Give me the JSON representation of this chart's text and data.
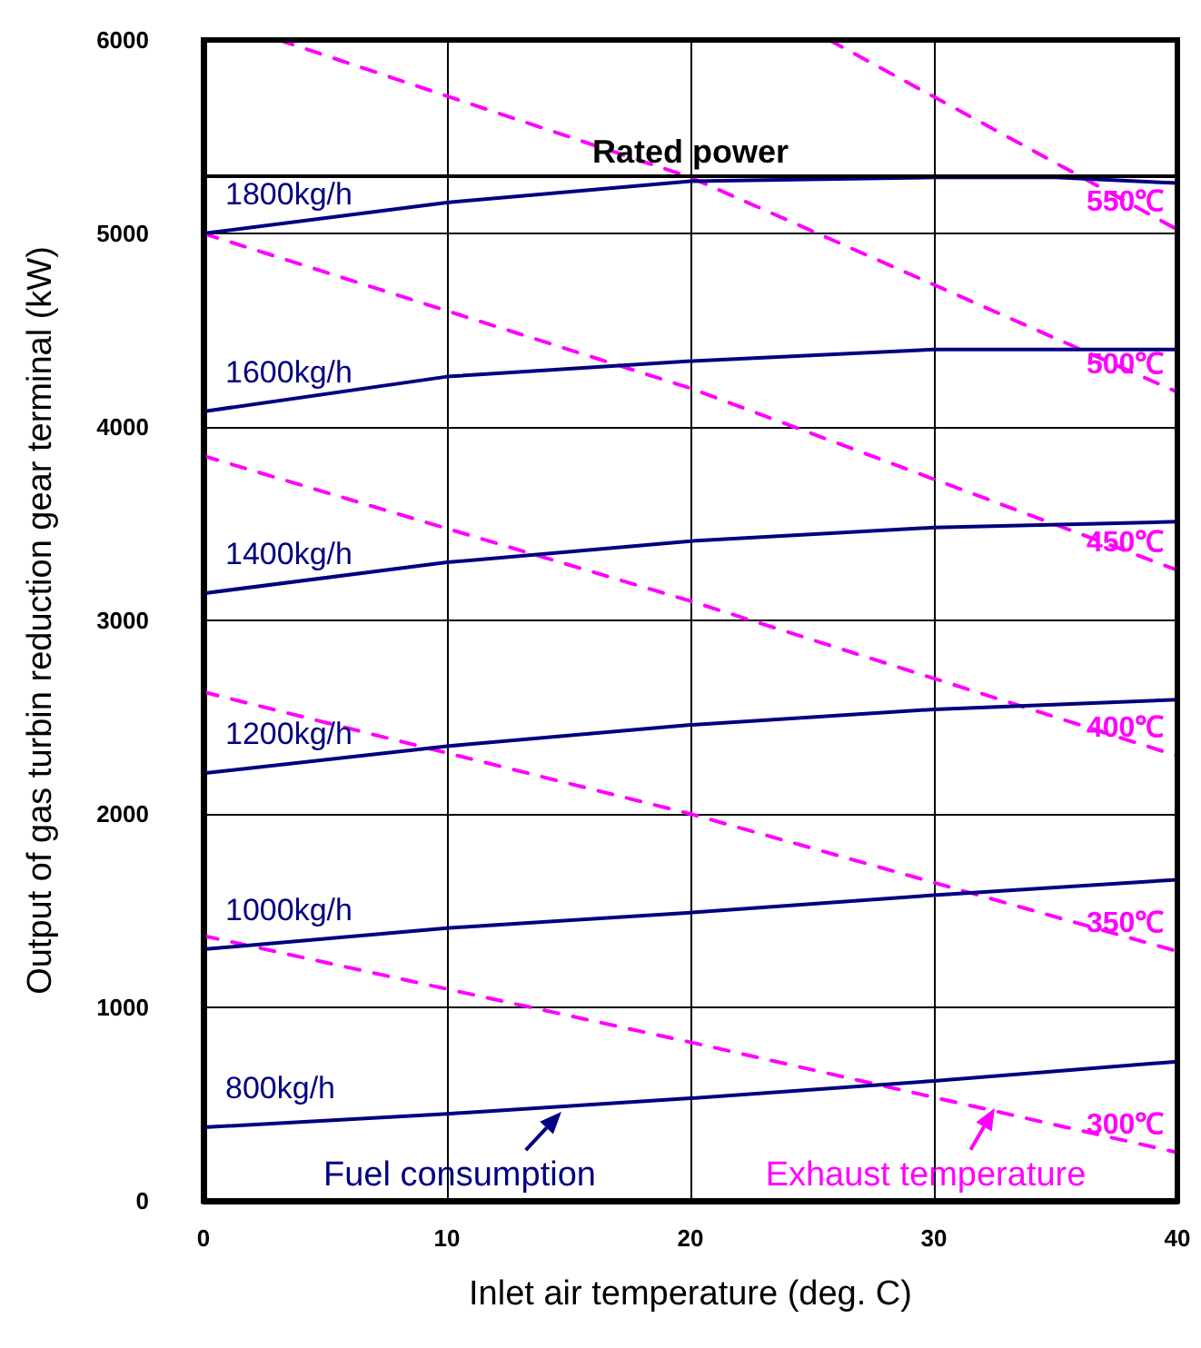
{
  "chart_data": {
    "type": "line",
    "xlabel": "Inlet air temperature (deg. C)",
    "ylabel": "Output of gas turbin reduction gear terminal (kW)",
    "xlim": [
      0,
      40
    ],
    "xticks": [
      0,
      10,
      20,
      30,
      40
    ],
    "ylim": [
      0,
      6000
    ],
    "yticks": [
      0,
      1000,
      2000,
      3000,
      4000,
      5000,
      6000
    ],
    "grid": true,
    "legend": false,
    "series": [
      {
        "name": "1800kg/h",
        "color": "#000080",
        "line_style": "solid",
        "x": [
          0,
          10,
          20,
          30,
          35,
          40
        ],
        "values": [
          5000,
          5160,
          5270,
          5290,
          5290,
          5260
        ]
      },
      {
        "name": "1600kg/h",
        "color": "#000080",
        "line_style": "solid",
        "x": [
          0,
          10,
          20,
          30,
          40
        ],
        "values": [
          4080,
          4260,
          4340,
          4400,
          4400
        ]
      },
      {
        "name": "1400kg/h",
        "color": "#000080",
        "line_style": "solid",
        "x": [
          0,
          10,
          20,
          30,
          40
        ],
        "values": [
          3140,
          3300,
          3410,
          3480,
          3510
        ]
      },
      {
        "name": "1200kg/h",
        "color": "#000080",
        "line_style": "solid",
        "x": [
          0,
          10,
          20,
          30,
          40
        ],
        "values": [
          2210,
          2350,
          2460,
          2540,
          2590
        ]
      },
      {
        "name": "1000kg/h",
        "color": "#000080",
        "line_style": "solid",
        "x": [
          0,
          10,
          20,
          30,
          40
        ],
        "values": [
          1300,
          1410,
          1490,
          1580,
          1660
        ]
      },
      {
        "name": "800kg/h",
        "color": "#000080",
        "line_style": "solid",
        "x": [
          0,
          10,
          20,
          30,
          40
        ],
        "values": [
          380,
          450,
          530,
          620,
          720
        ]
      },
      {
        "name": "550℃",
        "color": "#ff00ff",
        "line_style": "dashed",
        "x": [
          25.7,
          35.8,
          40
        ],
        "values": [
          6000,
          5310,
          5020
        ]
      },
      {
        "name": "500℃",
        "color": "#ff00ff",
        "line_style": "dashed",
        "x": [
          3.1,
          20,
          40
        ],
        "values": [
          6000,
          5290,
          4180
        ]
      },
      {
        "name": "450℃",
        "color": "#ff00ff",
        "line_style": "dashed",
        "x": [
          0,
          20,
          40
        ],
        "values": [
          5000,
          4200,
          3260
        ]
      },
      {
        "name": "400℃",
        "color": "#ff00ff",
        "line_style": "dashed",
        "x": [
          0,
          20,
          40
        ],
        "values": [
          3850,
          3100,
          2300
        ]
      },
      {
        "name": "350℃",
        "color": "#ff00ff",
        "line_style": "dashed",
        "x": [
          0,
          20,
          40
        ],
        "values": [
          2630,
          2000,
          1290
        ]
      },
      {
        "name": "300℃",
        "color": "#ff00ff",
        "line_style": "dashed",
        "x": [
          0,
          20,
          40
        ],
        "values": [
          1370,
          820,
          250
        ]
      }
    ],
    "ref_lines": [
      {
        "axis": "y",
        "value": 5300,
        "label": "Rated power",
        "color": "#000000"
      }
    ],
    "annotations": [
      {
        "text": "Fuel consumption",
        "x": 14.7,
        "y": 460
      },
      {
        "text": "Exhaust temperature",
        "x": 32.5,
        "y": 480
      }
    ]
  }
}
